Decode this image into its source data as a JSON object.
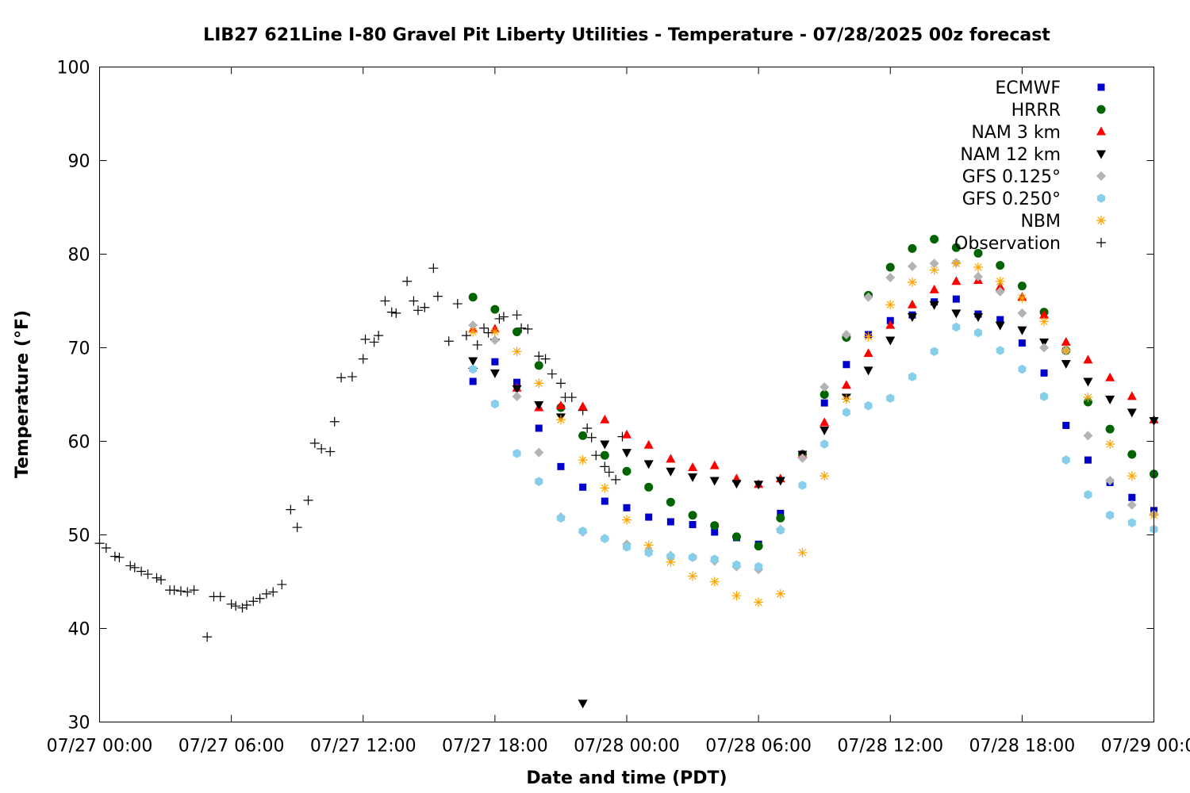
{
  "chart_data": {
    "type": "scatter",
    "title": "LIB27 621Line I-80 Gravel Pit Liberty Utilities - Temperature - 07/28/2025 00z forecast",
    "xlabel": "Date and time (PDT)",
    "ylabel": "Temperature (°F)",
    "x_unit": "hours after 07/27 00:00 PDT",
    "xlim": [
      0,
      48
    ],
    "ylim": [
      30,
      100
    ],
    "yticks": [
      30,
      40,
      50,
      60,
      70,
      80,
      90,
      100
    ],
    "xticks": [
      {
        "h": 0,
        "label": "07/27 00:00"
      },
      {
        "h": 6,
        "label": "07/27 06:00"
      },
      {
        "h": 12,
        "label": "07/27 12:00"
      },
      {
        "h": 18,
        "label": "07/27 18:00"
      },
      {
        "h": 24,
        "label": "07/28 00:00"
      },
      {
        "h": 30,
        "label": "07/28 06:00"
      },
      {
        "h": 36,
        "label": "07/28 12:00"
      },
      {
        "h": 42,
        "label": "07/28 18:00"
      },
      {
        "h": 48,
        "label": "07/29 00:00"
      }
    ],
    "grid": false,
    "legend_position": "top-right",
    "series": [
      {
        "name": "ECMWF",
        "marker": "square",
        "color": "#0000cc",
        "x": [
          17,
          18,
          19,
          20,
          21,
          22,
          23,
          24,
          25,
          26,
          27,
          28,
          29,
          30,
          31,
          32,
          33,
          34,
          35,
          36,
          37,
          38,
          39,
          40,
          41,
          42,
          43,
          44,
          45,
          46,
          47,
          48
        ],
        "y": [
          66.4,
          68.5,
          66.3,
          61.4,
          57.3,
          55.1,
          53.6,
          52.9,
          51.9,
          51.4,
          51.1,
          50.3,
          49.7,
          49.0,
          52.3,
          58.6,
          64.1,
          68.2,
          71.4,
          72.9,
          73.5,
          74.9,
          75.2,
          73.6,
          73.0,
          70.5,
          67.3,
          61.7,
          58.0,
          55.6,
          54.0,
          52.6
        ]
      },
      {
        "name": "HRRR",
        "marker": "circle",
        "color": "#006400",
        "x": [
          17,
          18,
          19,
          20,
          21,
          22,
          23,
          24,
          25,
          26,
          27,
          28,
          29,
          30,
          31,
          32,
          33,
          34,
          35,
          36,
          37,
          38,
          39,
          40,
          41,
          42,
          43,
          44,
          45,
          46,
          47,
          48
        ],
        "y": [
          75.4,
          74.1,
          71.7,
          68.1,
          63.6,
          60.6,
          58.5,
          56.8,
          55.1,
          53.5,
          52.1,
          51.0,
          49.8,
          48.8,
          51.8,
          58.6,
          65.0,
          71.1,
          75.6,
          78.6,
          80.6,
          81.6,
          80.7,
          80.1,
          78.8,
          76.6,
          73.8,
          69.7,
          64.2,
          61.3,
          58.6,
          56.5
        ]
      },
      {
        "name": "NAM 3 km",
        "marker": "triangle-up",
        "color": "#ff0000",
        "x": [
          17,
          18,
          19,
          20,
          21,
          22,
          23,
          24,
          25,
          26,
          27,
          28,
          29,
          30,
          31,
          32,
          33,
          34,
          35,
          36,
          37,
          38,
          39,
          40,
          41,
          42,
          43,
          44,
          45,
          46,
          47,
          48
        ],
        "y": [
          72.0,
          72.0,
          65.7,
          63.6,
          63.8,
          63.7,
          62.3,
          60.7,
          59.6,
          58.1,
          57.2,
          57.4,
          56.0,
          55.4,
          56.0,
          58.6,
          62.0,
          66.0,
          69.4,
          72.4,
          74.6,
          76.2,
          77.1,
          77.2,
          76.5,
          75.4,
          73.5,
          70.6,
          68.7,
          66.8,
          64.8,
          62.3
        ]
      },
      {
        "name": "NAM 12 km",
        "marker": "triangle-down",
        "color": "#000000",
        "x": [
          17,
          18,
          19,
          20,
          21,
          22,
          23,
          24,
          25,
          26,
          27,
          28,
          29,
          30,
          31,
          32,
          33,
          34,
          35,
          36,
          37,
          38,
          39,
          40,
          41,
          42,
          43,
          44,
          45,
          46,
          47,
          48
        ],
        "y": [
          68.6,
          67.3,
          65.6,
          63.9,
          62.6,
          32.0,
          59.7,
          58.8,
          57.6,
          56.8,
          56.2,
          55.8,
          55.5,
          55.4,
          55.8,
          58.6,
          61.2,
          64.7,
          67.6,
          70.8,
          73.3,
          74.6,
          73.7,
          73.3,
          72.4,
          71.9,
          70.6,
          68.3,
          66.4,
          64.5,
          63.1,
          62.2
        ]
      },
      {
        "name": "GFS 0.125°",
        "marker": "diamond",
        "color": "#b3b3b3",
        "x": [
          17,
          18,
          19,
          20,
          21,
          22,
          23,
          24,
          25,
          26,
          27,
          28,
          29,
          30,
          31,
          32,
          33,
          34,
          35,
          36,
          37,
          38,
          39,
          40,
          41,
          42,
          43,
          44,
          45,
          46,
          47,
          48
        ],
        "y": [
          72.4,
          70.8,
          64.8,
          58.8,
          51.9,
          50.3,
          49.6,
          49.0,
          48.3,
          47.8,
          47.6,
          47.2,
          46.6,
          46.3,
          50.6,
          58.2,
          65.8,
          71.4,
          75.4,
          77.5,
          78.7,
          79.0,
          79.1,
          77.6,
          76.0,
          73.7,
          70.0,
          69.7,
          60.6,
          55.8,
          53.2,
          52.2
        ]
      },
      {
        "name": "GFS 0.250°",
        "marker": "hexagon",
        "color": "#87ceeb",
        "x": [
          17,
          18,
          19,
          20,
          21,
          22,
          23,
          24,
          25,
          26,
          27,
          28,
          29,
          30,
          31,
          32,
          33,
          34,
          35,
          36,
          37,
          38,
          39,
          40,
          41,
          42,
          43,
          44,
          45,
          46,
          47,
          48
        ],
        "y": [
          67.7,
          64.0,
          58.7,
          55.7,
          51.8,
          50.4,
          49.6,
          48.7,
          48.1,
          47.7,
          47.6,
          47.4,
          46.8,
          46.6,
          50.5,
          55.3,
          59.7,
          63.1,
          63.8,
          64.6,
          66.9,
          69.6,
          72.2,
          71.6,
          69.7,
          67.7,
          64.8,
          58.0,
          54.3,
          52.1,
          51.3,
          50.6
        ]
      },
      {
        "name": "NBM",
        "marker": "asterisk",
        "color": "#ffa500",
        "x": [
          17,
          18,
          19,
          20,
          21,
          22,
          23,
          24,
          25,
          26,
          27,
          28,
          29,
          30,
          31,
          32,
          33,
          34,
          35,
          36,
          37,
          38,
          39,
          40,
          41,
          42,
          43,
          44,
          45,
          46,
          47,
          48
        ],
        "y": [
          71.7,
          71.7,
          69.6,
          66.2,
          62.3,
          58.0,
          55.0,
          51.6,
          48.9,
          47.1,
          45.6,
          45.0,
          43.5,
          42.8,
          43.7,
          48.1,
          56.3,
          64.5,
          71.2,
          74.6,
          77.0,
          78.3,
          79.0,
          78.6,
          77.1,
          75.3,
          72.8,
          69.7,
          64.7,
          59.7,
          56.3,
          52.1
        ]
      },
      {
        "name": "Observation",
        "marker": "plus",
        "color": "#000000",
        "x": [
          0,
          0.3,
          0.7,
          0.9,
          1.4,
          1.6,
          1.9,
          2.2,
          2.6,
          2.8,
          3.2,
          3.4,
          3.7,
          4.0,
          4.3,
          4.9,
          5.2,
          5.5,
          6.0,
          6.2,
          6.5,
          6.7,
          7.0,
          7.3,
          7.6,
          7.9,
          8.3,
          8.7,
          9.0,
          9.5,
          9.8,
          10.1,
          10.5,
          10.7,
          11.0,
          11.5,
          12.0,
          12.1,
          12.5,
          12.7,
          13.0,
          13.3,
          13.5,
          14.0,
          14.3,
          14.5,
          14.8,
          15.2,
          15.4,
          15.9,
          16.3,
          16.7,
          17.0,
          17.2,
          17.5,
          17.7,
          18.0,
          18.2,
          18.4,
          19.0,
          19.2,
          19.5,
          20.0,
          20.3,
          20.6,
          21.0,
          21.2,
          21.5,
          22.0,
          22.2,
          22.4,
          22.6,
          23.0,
          23.2,
          23.5,
          23.8
        ],
        "y": [
          49.1,
          48.6,
          47.7,
          47.6,
          46.7,
          46.5,
          46.1,
          45.8,
          45.4,
          45.2,
          44.1,
          44.1,
          44.0,
          43.9,
          44.1,
          39.1,
          43.4,
          43.4,
          42.6,
          42.4,
          42.2,
          42.5,
          42.9,
          43.2,
          43.7,
          43.9,
          44.7,
          52.7,
          50.8,
          53.7,
          59.8,
          59.2,
          58.9,
          62.1,
          66.8,
          66.9,
          68.8,
          70.9,
          70.6,
          71.3,
          75.0,
          73.8,
          73.7,
          77.1,
          75.0,
          74.0,
          74.3,
          78.5,
          75.5,
          70.7,
          74.7,
          71.3,
          67.8,
          70.3,
          72.1,
          71.6,
          70.9,
          73.1,
          73.3,
          73.5,
          72.1,
          72.0,
          69.1,
          68.8,
          67.2,
          66.2,
          64.7,
          64.7,
          63.3,
          61.4,
          60.4,
          58.5,
          57.3,
          56.7,
          55.9,
          60.5
        ]
      }
    ]
  }
}
